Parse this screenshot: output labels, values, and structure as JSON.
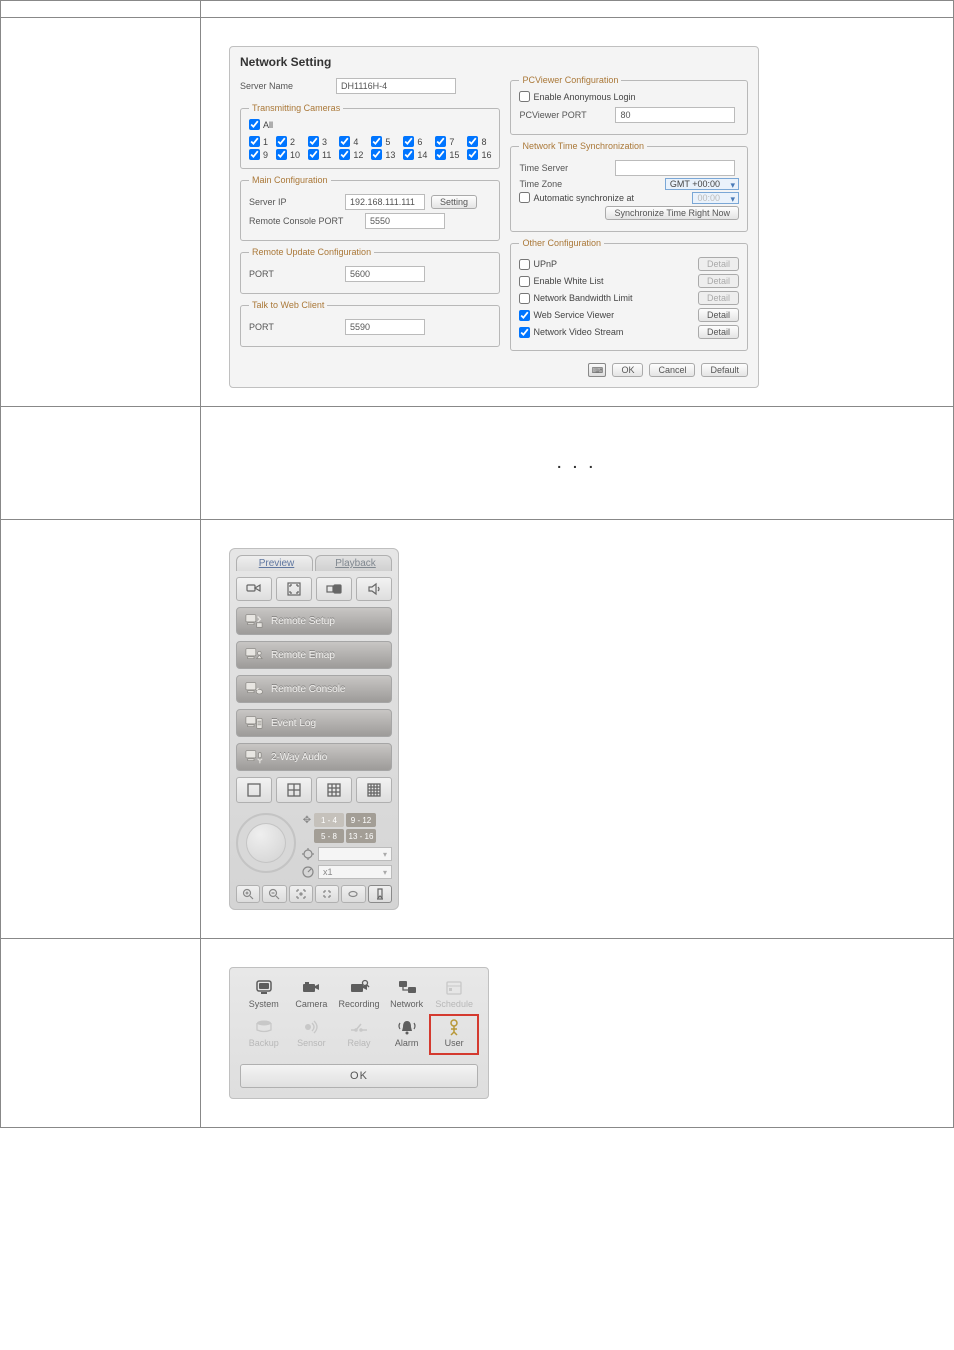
{
  "ns": {
    "title": "Network Setting",
    "server_name_label": "Server Name",
    "server_name": "DH1116H-4",
    "transmitting_cameras_legend": "Transmitting Cameras",
    "all_label": "All",
    "cams": [
      "1",
      "2",
      "3",
      "4",
      "5",
      "6",
      "7",
      "8",
      "9",
      "10",
      "11",
      "12",
      "13",
      "14",
      "15",
      "16"
    ],
    "main_cfg_legend": "Main Configuration",
    "server_ip_label": "Server IP",
    "server_ip": "192.168.111.111",
    "setting_btn": "Setting",
    "remote_console_port_label": "Remote Console PORT",
    "remote_console_port": "5550",
    "remote_update_legend": "Remote Update Configuration",
    "ru_port_label": "PORT",
    "ru_port": "5600",
    "talk_legend": "Talk to Web Client",
    "talk_port_label": "PORT",
    "talk_port": "5590",
    "pcv_legend": "PCViewer Configuration",
    "pcv_anon": "Enable Anonymous Login",
    "pcv_port_label": "PCViewer PORT",
    "pcv_port": "80",
    "nts_legend": "Network Time Synchronization",
    "time_server_label": "Time Server",
    "time_server": "",
    "time_zone_label": "Time Zone",
    "time_zone": "GMT +00:00",
    "auto_sync_label": "Automatic synchronize at",
    "auto_sync_time": "00:00",
    "sync_now_btn": "Synchronize Time Right Now",
    "other_legend": "Other Configuration",
    "upnp_label": "UPnP",
    "whitelist_label": "Enable White List",
    "bw_label": "Network Bandwidth Limit",
    "wsv_label": "Web Service Viewer",
    "nvs_label": "Network Video Stream",
    "detail_btn": "Detail",
    "ok": "OK",
    "cancel": "Cancel",
    "default": "Default"
  },
  "cp": {
    "preview": "Preview",
    "playback": "Playback",
    "remote_setup": "Remote Setup",
    "remote_emap": "Remote Emap",
    "remote_console": "Remote Console",
    "event_log": "Event Log",
    "two_way_audio": "2-Way Audio",
    "ch14": "1 - 4",
    "ch912": "9 - 12",
    "ch58": "5 - 8",
    "ch1316": "13 - 16",
    "x1": "x1"
  },
  "setup": {
    "system": "System",
    "camera": "Camera",
    "recording": "Recording",
    "network": "Network",
    "schedule": "Schedule",
    "backup": "Backup",
    "sensor": "Sensor",
    "relay": "Relay",
    "alarm": "Alarm",
    "user": "User",
    "ok": "OK"
  }
}
